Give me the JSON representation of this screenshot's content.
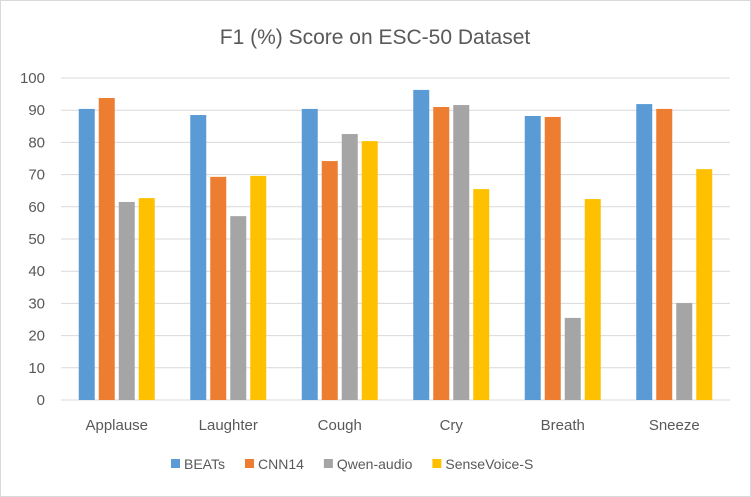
{
  "chart_data": {
    "type": "bar",
    "title": "F1 (%) Score on ESC-50 Dataset",
    "xlabel": "",
    "ylabel": "",
    "ylim": [
      0,
      100
    ],
    "yticks": [
      "0",
      "10",
      "20",
      "30",
      "40",
      "50",
      "60",
      "70",
      "80",
      "90",
      "100"
    ],
    "grid": true,
    "legend_position": "bottom",
    "categories": [
      "Applause",
      "Laughter",
      "Cough",
      "Cry",
      "Breath",
      "Sneeze"
    ],
    "series": [
      {
        "name": "BEATs",
        "color": "#5b9bd5",
        "values": [
          90.4,
          88.5,
          90.4,
          96.3,
          88.2,
          91.9
        ]
      },
      {
        "name": "CNN14",
        "color": "#ed7d31",
        "values": [
          93.8,
          69.3,
          74.2,
          91.0,
          87.9,
          90.4
        ]
      },
      {
        "name": "Qwen-audio",
        "color": "#a5a5a5",
        "values": [
          61.5,
          57.1,
          82.6,
          91.6,
          25.5,
          30.1
        ]
      },
      {
        "name": "SenseVoice-S",
        "color": "#ffc000",
        "values": [
          62.7,
          69.6,
          80.4,
          65.5,
          62.4,
          71.7
        ]
      }
    ]
  }
}
